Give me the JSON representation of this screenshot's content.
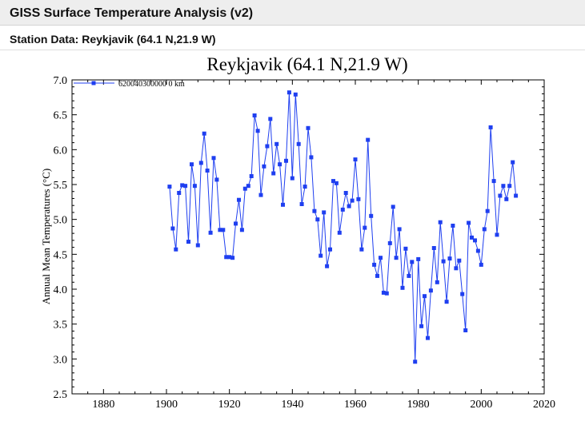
{
  "header": {
    "title": "GISS Surface Temperature Analysis (v2)",
    "subtitle": "Station Data: Reykjavik (64.1 N,21.9 W)"
  },
  "colors": {
    "series": "#1f3ff0",
    "header_bg": "#eeeeee"
  },
  "chart_data": {
    "type": "line",
    "title": "Reykjavik (64.1 N,21.9 W)",
    "xlabel": "",
    "ylabel": "Annual Mean Temperatures (°C)",
    "xlim": [
      1870,
      2020
    ],
    "ylim": [
      2.5,
      7.0
    ],
    "x_ticks": [
      "1880",
      "1900",
      "1920",
      "1940",
      "1960",
      "1980",
      "2000",
      "2020"
    ],
    "y_ticks": [
      "2.5",
      "3.0",
      "3.5",
      "4.0",
      "4.5",
      "5.0",
      "5.5",
      "6.0",
      "6.5",
      "7.0"
    ],
    "grid": false,
    "legend_position": "top-left",
    "series": [
      {
        "name": "620040300000 0 km",
        "color": "#1f3ff0",
        "x": [
          1901,
          1902,
          1903,
          1904,
          1905,
          1906,
          1907,
          1908,
          1909,
          1910,
          1911,
          1912,
          1913,
          1914,
          1915,
          1916,
          1917,
          1918,
          1919,
          1920,
          1921,
          1922,
          1923,
          1924,
          1925,
          1926,
          1927,
          1928,
          1929,
          1930,
          1931,
          1932,
          1933,
          1934,
          1935,
          1936,
          1937,
          1938,
          1939,
          1940,
          1941,
          1942,
          1943,
          1944,
          1945,
          1946,
          1947,
          1948,
          1949,
          1950,
          1951,
          1952,
          1953,
          1954,
          1955,
          1956,
          1957,
          1958,
          1959,
          1960,
          1961,
          1962,
          1963,
          1964,
          1965,
          1966,
          1967,
          1968,
          1969,
          1970,
          1971,
          1972,
          1973,
          1974,
          1975,
          1976,
          1977,
          1978,
          1979,
          1980,
          1981,
          1982,
          1983,
          1984,
          1985,
          1986,
          1987,
          1988,
          1989,
          1990,
          1991,
          1992,
          1993,
          1994,
          1995,
          1996,
          1997,
          1998,
          1999,
          2000,
          2001,
          2002,
          2003,
          2004,
          2005,
          2006,
          2007,
          2008,
          2009,
          2010,
          2011
        ],
        "y": [
          5.47,
          4.87,
          4.57,
          5.38,
          5.49,
          5.48,
          4.68,
          5.79,
          5.48,
          4.63,
          5.81,
          6.23,
          5.7,
          4.81,
          5.88,
          5.57,
          4.85,
          4.85,
          4.46,
          4.46,
          4.45,
          4.94,
          5.28,
          4.85,
          5.44,
          5.48,
          5.62,
          6.49,
          6.27,
          5.35,
          5.76,
          6.05,
          6.44,
          5.66,
          6.08,
          5.79,
          5.21,
          5.84,
          6.82,
          5.59,
          6.79,
          6.08,
          5.22,
          5.47,
          6.31,
          5.89,
          5.12,
          5.0,
          4.48,
          5.1,
          4.33,
          4.57,
          5.55,
          5.52,
          4.81,
          5.14,
          5.38,
          5.19,
          5.27,
          5.86,
          5.29,
          4.57,
          4.88,
          6.14,
          5.05,
          4.35,
          4.19,
          4.45,
          3.95,
          3.94,
          4.66,
          5.18,
          4.45,
          4.86,
          4.02,
          4.58,
          4.19,
          4.39,
          2.96,
          4.43,
          3.47,
          3.9,
          3.3,
          3.98,
          4.59,
          4.1,
          4.96,
          4.4,
          3.82,
          4.44,
          4.91,
          4.3,
          4.41,
          3.93,
          3.41,
          4.95,
          4.74,
          4.7,
          4.55,
          4.35,
          4.86,
          5.12,
          6.32,
          5.55,
          4.78,
          5.34,
          5.48,
          5.29,
          5.48,
          5.82,
          5.34
        ]
      }
    ]
  }
}
